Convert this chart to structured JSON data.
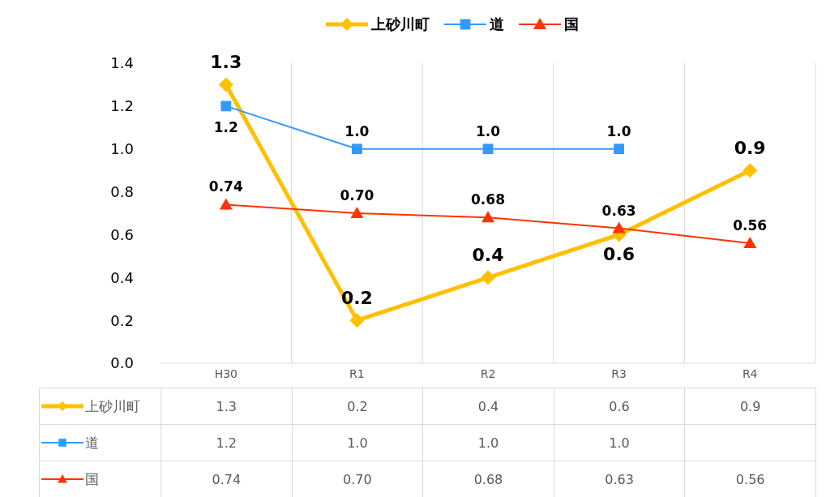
{
  "chart_data": {
    "type": "line",
    "categories": [
      "H30",
      "R1",
      "R2",
      "R3",
      "R4"
    ],
    "series": [
      {
        "name": "上砂川町",
        "color": "#ffc000",
        "marker": "diamond",
        "values": [
          1.3,
          0.2,
          0.4,
          0.6,
          0.9
        ],
        "value_labels": [
          "1.3",
          "0.2",
          "0.4",
          "0.6",
          "0.9"
        ]
      },
      {
        "name": "道",
        "color": "#3399ff",
        "marker": "square",
        "values": [
          1.2,
          1.0,
          1.0,
          1.0,
          null
        ],
        "value_labels": [
          "1.2",
          "1.0",
          "1.0",
          "1.0",
          null
        ]
      },
      {
        "name": "国",
        "color": "#ff3300",
        "marker": "triangle",
        "values": [
          0.74,
          0.7,
          0.68,
          0.63,
          0.56
        ],
        "value_labels": [
          "0.74",
          "0.70",
          "0.68",
          "0.63",
          "0.56"
        ]
      }
    ],
    "ylim": [
      0,
      1.4
    ],
    "yticks": [
      {
        "value": 0,
        "label": "0.0"
      },
      {
        "value": 0.2,
        "label": "0.2"
      },
      {
        "value": 0.4,
        "label": "0.4"
      },
      {
        "value": 0.6,
        "label": "0.6"
      },
      {
        "value": 0.8,
        "label": "0.8"
      },
      {
        "value": 1,
        "label": "1.0"
      },
      {
        "value": 1.2,
        "label": "1.2"
      },
      {
        "value": 1.4,
        "label": "1.4"
      }
    ],
    "grid": "x",
    "legend": "top"
  }
}
